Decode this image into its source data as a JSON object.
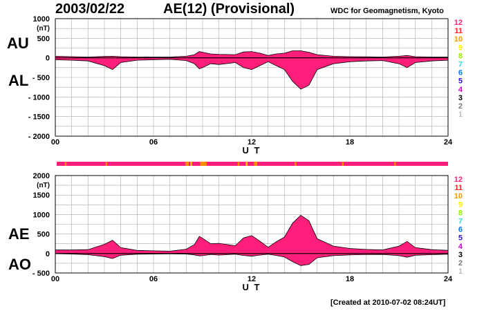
{
  "header": {
    "date": "2003/02/22",
    "title": "AE(12) (Provisional)",
    "source": "WDC for Geomagnetism, Kyoto"
  },
  "footer": {
    "created": "[Created at 2010-07-02 08:24UT]"
  },
  "colors": {
    "fill_main": "#ff1f7a",
    "fill_orange": "#ff8c00",
    "fill_red": "#ff2a1a",
    "fill_yellow": "#ffcc00",
    "grid": "#aaaaaa"
  },
  "legend": {
    "items": [
      {
        "label": "12",
        "color": "#ff1f7a"
      },
      {
        "label": "11",
        "color": "#ff2020"
      },
      {
        "label": "10",
        "color": "#ff9900"
      },
      {
        "label": "9",
        "color": "#ffee00"
      },
      {
        "label": "8",
        "color": "#99ee00"
      },
      {
        "label": "7",
        "color": "#33dddd"
      },
      {
        "label": "6",
        "color": "#0077ff"
      },
      {
        "label": "5",
        "color": "#3311cc"
      },
      {
        "label": "4",
        "color": "#cc00cc"
      },
      {
        "label": "3",
        "color": "#000000"
      },
      {
        "label": "2",
        "color": "#777777"
      },
      {
        "label": "1",
        "color": "#bbbbbb"
      }
    ]
  },
  "chart_data": [
    {
      "type": "area",
      "panel": "top",
      "side_labels": [
        "AU",
        "AL"
      ],
      "ylabel": "(nT)",
      "xlabel": "U T",
      "xlim": [
        0,
        24
      ],
      "ylim": [
        -2000,
        1000
      ],
      "x_ticks": [
        "00",
        "06",
        "12",
        "18",
        "24"
      ],
      "y_ticks": [
        "1000",
        "500",
        "0",
        "- 500",
        "- 1000",
        "- 1500",
        "- 2000"
      ],
      "grid": true,
      "series": [
        {
          "name": "AU",
          "x": [
            0,
            1,
            2,
            3,
            3.5,
            4,
            5,
            6,
            7,
            8,
            8.5,
            8.8,
            9,
            9.5,
            10,
            11,
            11.5,
            12,
            12.5,
            13,
            13.5,
            14,
            14.5,
            15,
            15.5,
            16,
            17,
            18,
            19,
            20,
            21,
            21.5,
            22,
            23,
            24
          ],
          "values": [
            40,
            30,
            20,
            35,
            40,
            30,
            20,
            20,
            20,
            40,
            80,
            160,
            140,
            100,
            90,
            80,
            150,
            160,
            120,
            60,
            100,
            120,
            180,
            180,
            140,
            80,
            40,
            30,
            25,
            20,
            40,
            60,
            30,
            20,
            20
          ]
        },
        {
          "name": "AL",
          "x": [
            0,
            1,
            2,
            3,
            3.5,
            4,
            5,
            6,
            7,
            8,
            8.5,
            8.8,
            9,
            9.5,
            10,
            11,
            11.5,
            12,
            12.5,
            13,
            13.5,
            14,
            14.5,
            15,
            15.5,
            16,
            17,
            18,
            19,
            20,
            21,
            21.5,
            22,
            23,
            24
          ],
          "values": [
            -50,
            -60,
            -80,
            -200,
            -300,
            -120,
            -60,
            -50,
            -40,
            -70,
            -150,
            -280,
            -250,
            -150,
            -170,
            -120,
            -250,
            -300,
            -200,
            -100,
            -200,
            -300,
            -600,
            -800,
            -700,
            -300,
            -150,
            -100,
            -80,
            -70,
            -150,
            -250,
            -120,
            -80,
            -60
          ]
        }
      ]
    },
    {
      "type": "area",
      "panel": "bottom",
      "side_labels": [
        "AE",
        "AO"
      ],
      "ylabel": "(nT)",
      "xlabel": "U T",
      "xlim": [
        0,
        24
      ],
      "ylim": [
        -500,
        2000
      ],
      "x_ticks": [
        "00",
        "06",
        "12",
        "18",
        "24"
      ],
      "y_ticks": [
        "2000",
        "1500",
        "1000",
        "500",
        "0",
        "- 500"
      ],
      "grid": true,
      "series": [
        {
          "name": "AE",
          "x": [
            0,
            1,
            2,
            3,
            3.5,
            4,
            5,
            6,
            7,
            8,
            8.5,
            8.8,
            9,
            9.5,
            10,
            11,
            11.5,
            12,
            12.5,
            13,
            13.5,
            14,
            14.5,
            15,
            15.5,
            16,
            17,
            18,
            19,
            20,
            21,
            21.5,
            22,
            23,
            24
          ],
          "values": [
            90,
            90,
            100,
            235,
            340,
            150,
            80,
            70,
            60,
            110,
            230,
            440,
            390,
            250,
            260,
            200,
            400,
            460,
            320,
            160,
            300,
            420,
            780,
            980,
            840,
            380,
            190,
            130,
            105,
            90,
            190,
            310,
            150,
            100,
            80
          ]
        },
        {
          "name": "AO",
          "x": [
            0,
            1,
            2,
            3,
            3.5,
            4,
            5,
            6,
            7,
            8,
            8.5,
            8.8,
            9,
            9.5,
            10,
            11,
            11.5,
            12,
            12.5,
            13,
            13.5,
            14,
            14.5,
            15,
            15.5,
            16,
            17,
            18,
            19,
            20,
            21,
            21.5,
            22,
            23,
            24
          ],
          "values": [
            -5,
            -15,
            -30,
            -80,
            -130,
            -45,
            -20,
            -15,
            -10,
            -15,
            -35,
            -60,
            -55,
            -25,
            -40,
            -20,
            -50,
            -70,
            -40,
            -20,
            -50,
            -90,
            -210,
            -310,
            -280,
            -110,
            -55,
            -35,
            -28,
            -25,
            -55,
            -95,
            -45,
            -30,
            -20
          ]
        }
      ]
    }
  ]
}
